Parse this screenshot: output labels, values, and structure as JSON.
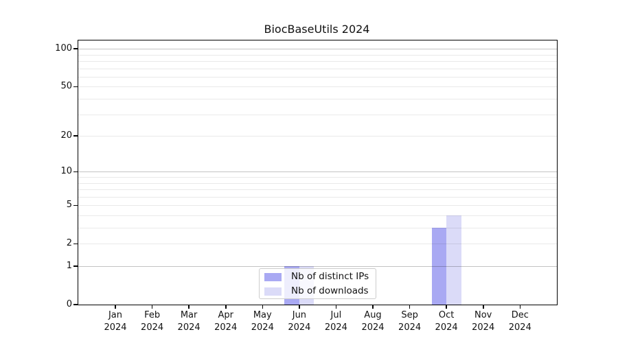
{
  "chart_data": {
    "type": "bar",
    "title": "BiocBaseUtils 2024",
    "x_categories": [
      "Jan",
      "Feb",
      "Mar",
      "Apr",
      "May",
      "Jun",
      "Jul",
      "Aug",
      "Sep",
      "Oct",
      "Nov",
      "Dec"
    ],
    "x_sublabel": "2024",
    "y_scale": "log1p",
    "y_ticks": [
      100,
      50,
      20,
      10,
      5,
      2,
      1,
      0
    ],
    "y_gridlines_major": [
      1,
      10,
      100
    ],
    "y_gridlines_minor": [
      2,
      3,
      4,
      5,
      6,
      7,
      8,
      9,
      20,
      30,
      40,
      50,
      60,
      70,
      80,
      90
    ],
    "ylim": [
      0,
      116
    ],
    "grid": true,
    "series": [
      {
        "name": "Nb of distinct IPs",
        "color": "#a9a9f3",
        "values": [
          0,
          0,
          0,
          0,
          0,
          1,
          0,
          0,
          0,
          3,
          0,
          0
        ]
      },
      {
        "name": "Nb of downloads",
        "color": "#dbdbf8",
        "values": [
          0,
          0,
          0,
          0,
          0,
          1,
          0,
          0,
          0,
          4,
          0,
          0
        ]
      }
    ],
    "legend": {
      "position": "inside-bottom-center",
      "items": [
        "Nb of distinct IPs",
        "Nb of downloads"
      ]
    }
  },
  "colors": {
    "background": "#ffffff",
    "spine": "#000000",
    "grid_major": "#c3c3c3",
    "grid_minor": "#e9e9e9",
    "text": "#111111",
    "legend_border": "#cccccc"
  }
}
